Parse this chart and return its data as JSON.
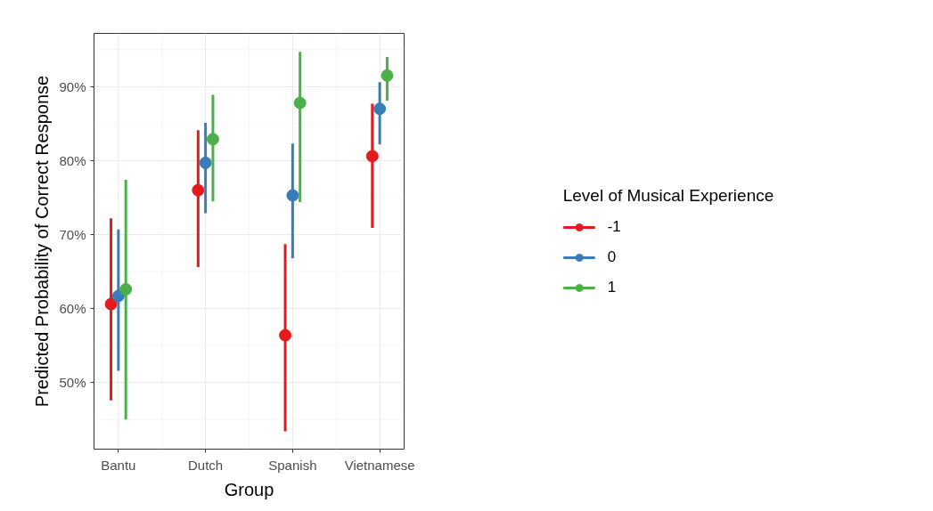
{
  "chart_data": {
    "type": "scatter",
    "xlabel": "Group",
    "ylabel": "Predicted Probability of Correct Response",
    "legend_title": "Level of Musical Experience",
    "categories": [
      "Bantu",
      "Dutch",
      "Spanish",
      "Vietnamese"
    ],
    "series": [
      {
        "name": "-1",
        "color": "#e41a1c",
        "values": [
          60.6,
          76.0,
          56.4,
          80.6
        ],
        "errors": [
          [
            47.6,
            72.2
          ],
          [
            65.6,
            84.1
          ],
          [
            43.4,
            68.7
          ],
          [
            70.9,
            87.7
          ]
        ]
      },
      {
        "name": "0",
        "color": "#377eb8",
        "values": [
          61.7,
          79.7,
          75.3,
          87.0
        ],
        "errors": [
          [
            51.6,
            70.7
          ],
          [
            72.9,
            85.1
          ],
          [
            66.8,
            82.3
          ],
          [
            82.2,
            90.6
          ]
        ]
      },
      {
        "name": "1",
        "color": "#4daf4a",
        "values": [
          62.6,
          82.9,
          87.8,
          91.5
        ],
        "errors": [
          [
            45.0,
            77.4
          ],
          [
            74.5,
            88.9
          ],
          [
            74.4,
            94.7
          ],
          [
            88.1,
            94.0
          ]
        ]
      }
    ],
    "ylim": [
      41.0,
      97.2
    ],
    "yticks": [
      {
        "value": 50,
        "label": "50%"
      },
      {
        "value": 60,
        "label": "60%"
      },
      {
        "value": 70,
        "label": "70%"
      },
      {
        "value": 80,
        "label": "80%"
      },
      {
        "value": 90,
        "label": "90%"
      }
    ],
    "grid": true,
    "legend": "right",
    "marker": "circle"
  }
}
